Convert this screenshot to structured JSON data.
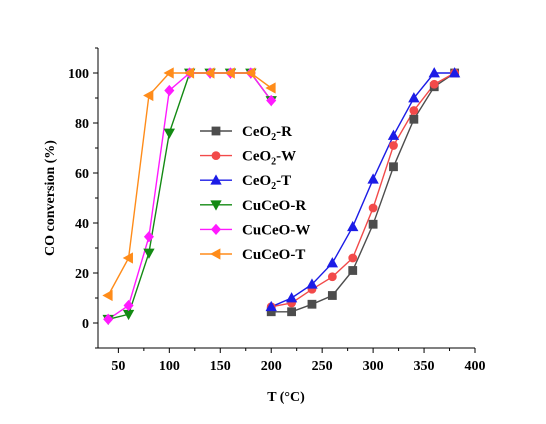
{
  "chart_data": {
    "type": "line",
    "xlabel": "T (°C)",
    "ylabel": "CO conversion (%)",
    "xlim": [
      30,
      400
    ],
    "ylim": [
      -10,
      110
    ],
    "x_ticks": [
      50,
      100,
      150,
      200,
      250,
      300,
      350,
      400
    ],
    "y_ticks": [
      0,
      20,
      40,
      60,
      80,
      100
    ],
    "grid": false,
    "legend_position": "right",
    "series": [
      {
        "name": "CeO2-R",
        "name_main": "CeO",
        "name_sub": "2",
        "name_tail": "-R",
        "color": "#4d4d4d",
        "marker": "square",
        "x": [
          200,
          220,
          240,
          260,
          280,
          300,
          320,
          340,
          360,
          380
        ],
        "y": [
          4.5,
          4.5,
          7.5,
          11,
          21,
          39.5,
          62.5,
          81.5,
          94.5,
          100
        ]
      },
      {
        "name": "CeO2-W",
        "name_main": "CeO",
        "name_sub": "2",
        "name_tail": "-W",
        "color": "#f24a4a",
        "marker": "circle",
        "x": [
          200,
          220,
          240,
          260,
          280,
          300,
          320,
          340,
          360,
          380
        ],
        "y": [
          6.5,
          8,
          13.5,
          18.5,
          26,
          46,
          71,
          85,
          95.5,
          100
        ]
      },
      {
        "name": "CeO2-T",
        "name_main": "CeO",
        "name_sub": "2",
        "name_tail": "-T",
        "color": "#1c1ce6",
        "marker": "triangle-up",
        "x": [
          200,
          220,
          240,
          260,
          280,
          300,
          320,
          340,
          360,
          380
        ],
        "y": [
          6.5,
          10,
          15.5,
          24,
          38.5,
          57.5,
          75,
          90,
          100,
          100
        ]
      },
      {
        "name": "CuCeO-R",
        "name_main": "CuCeO-R",
        "color": "#138a13",
        "marker": "triangle-down",
        "x": [
          40,
          60,
          80,
          100,
          120,
          140,
          160,
          180,
          200
        ],
        "y": [
          1.5,
          3.5,
          28,
          76,
          100,
          100,
          100,
          100,
          89
        ]
      },
      {
        "name": "CuCeO-W",
        "name_main": "CuCeO-W",
        "color": "#ff1aff",
        "marker": "diamond",
        "x": [
          40,
          60,
          80,
          100,
          120,
          140,
          160,
          180,
          200
        ],
        "y": [
          1.5,
          7,
          34.5,
          93,
          100,
          100,
          100,
          100,
          89
        ]
      },
      {
        "name": "CuCeO-T",
        "name_main": "CuCeO-T",
        "color": "#ff8c1a",
        "marker": "triangle-left",
        "x": [
          40,
          60,
          80,
          100,
          120,
          140,
          160,
          180,
          200
        ],
        "y": [
          11,
          26,
          91,
          100,
          100,
          100,
          100,
          100,
          94
        ]
      }
    ]
  }
}
